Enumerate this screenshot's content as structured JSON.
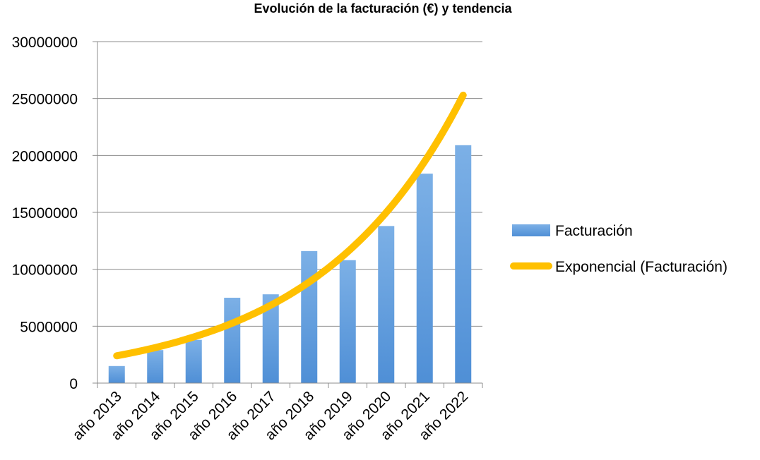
{
  "chart_data": {
    "type": "bar",
    "title": "Evolución de la facturación (€) y tendencia",
    "xlabel": "",
    "ylabel": "",
    "categories": [
      "año 2013",
      "año 2014",
      "año 2015",
      "año 2016",
      "año 2017",
      "año 2018",
      "año 2019",
      "año 2020",
      "año 2021",
      "año 2022"
    ],
    "series": [
      {
        "name": "Facturación",
        "type": "bar",
        "values": [
          1500000,
          2900000,
          3800000,
          7500000,
          7800000,
          11600000,
          10800000,
          13800000,
          18400000,
          20900000
        ]
      },
      {
        "name": "Exponencial (Facturación)",
        "type": "trendline-exponential",
        "values": [
          2400000,
          3000000,
          3900000,
          5100000,
          6600000,
          8600000,
          11200000,
          14900000,
          19500000,
          25300000
        ]
      }
    ],
    "ylim": [
      0,
      30000000
    ],
    "yticks": [
      "0",
      "5000000",
      "10000000",
      "15000000",
      "20000000",
      "25000000",
      "30000000"
    ],
    "grid": true,
    "legend_position": "right",
    "colors": {
      "bar": "#4f8fd6",
      "bar_light": "#7cb0e6",
      "trend": "#ffc000",
      "grid": "#8c8c8c"
    }
  }
}
